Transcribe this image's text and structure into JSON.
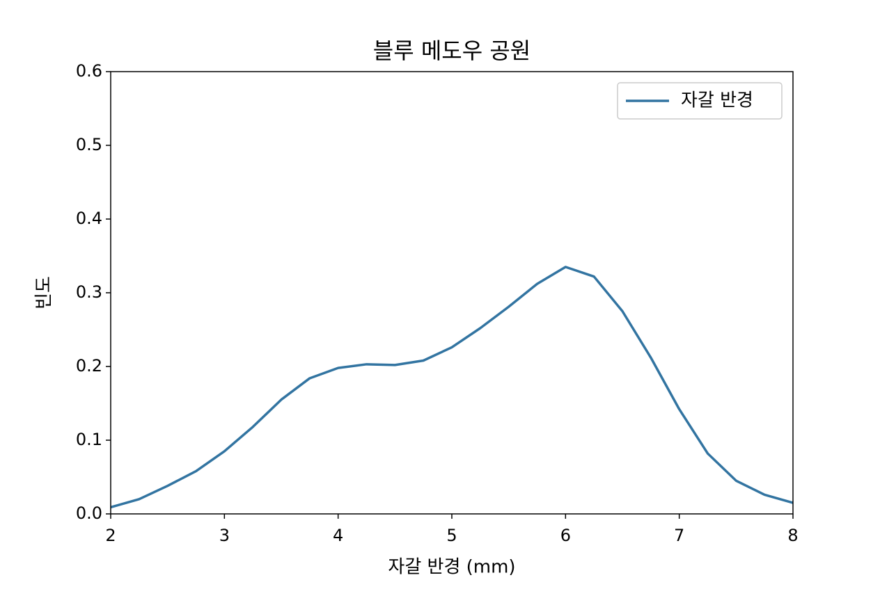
{
  "chart_data": {
    "type": "line",
    "title": "블루 메도우 공원",
    "x_label": "자갈 반경 (mm)",
    "y_label": "빈도",
    "x": [
      2,
      2.25,
      2.5,
      2.75,
      3,
      3.25,
      3.5,
      3.75,
      4,
      4.25,
      4.5,
      4.75,
      5,
      5.25,
      5.5,
      5.75,
      6,
      6.25,
      6.5,
      6.75,
      7,
      7.25,
      7.5,
      7.75,
      8
    ],
    "series": [
      {
        "name": "자갈 반경",
        "color": "#3274a1",
        "values": [
          0.009,
          0.02,
          0.038,
          0.058,
          0.085,
          0.118,
          0.155,
          0.184,
          0.198,
          0.203,
          0.202,
          0.208,
          0.226,
          0.252,
          0.281,
          0.312,
          0.335,
          0.322,
          0.275,
          0.212,
          0.142,
          0.082,
          0.045,
          0.026,
          0.015
        ]
      }
    ],
    "xlim": [
      2,
      8
    ],
    "xticks": [
      2,
      3,
      4,
      5,
      6,
      7,
      8
    ],
    "ylim": [
      0,
      0.6
    ],
    "yticks": [
      {
        "value": 0,
        "label": "0.0"
      },
      0.1,
      0.2,
      0.3,
      0.4,
      0.5,
      0.6
    ],
    "grid": false,
    "legend": "upper right"
  }
}
